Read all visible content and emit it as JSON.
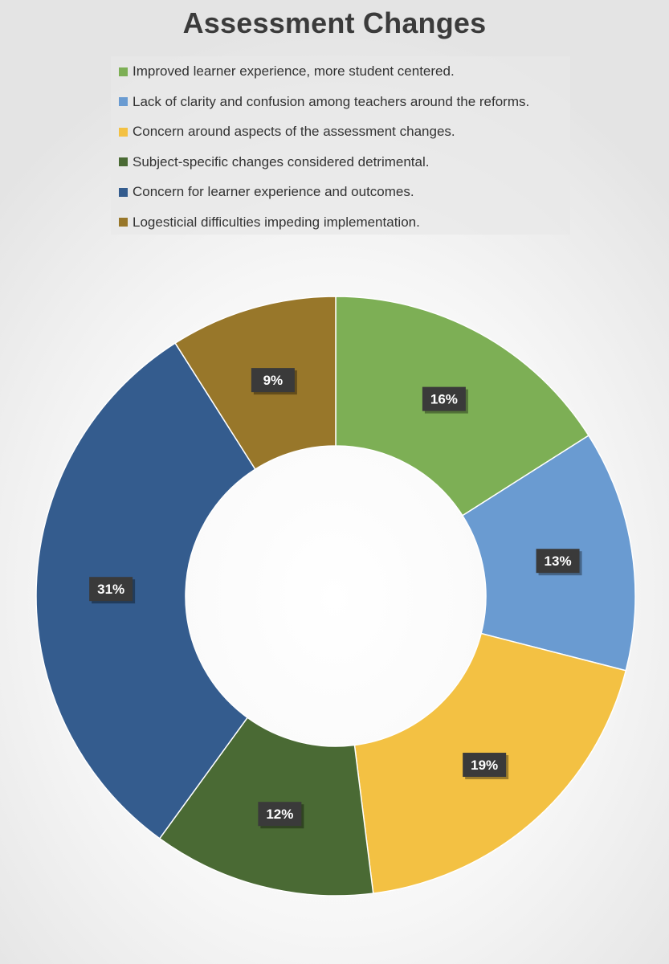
{
  "chart_data": {
    "type": "pie",
    "title": "Assessment Changes",
    "categories": [
      "Improved learner experience, more student centered.",
      "Lack of clarity and confusion among teachers around the reforms.",
      "Concern around aspects of the assessment changes.",
      "Subject-specific changes considered detrimental.",
      "Concern  for learner experience and outcomes.",
      "Logesticial difficulties impeding implementation."
    ],
    "values": [
      16,
      13,
      19,
      12,
      31,
      9
    ],
    "labels": [
      "16%",
      "13%",
      "19%",
      "12%",
      "31%",
      "9%"
    ],
    "colors": [
      "#7DAF55",
      "#6A9BD1",
      "#F3C143",
      "#4A6A34",
      "#345C8E",
      "#98772A"
    ],
    "legend": "top",
    "donut": true
  }
}
